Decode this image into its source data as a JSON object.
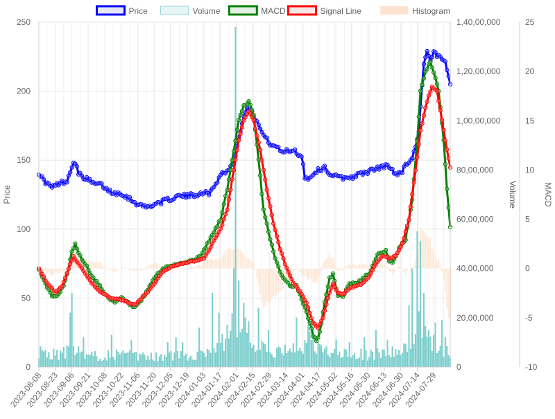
{
  "chart_data": {
    "type": "line",
    "legend": {
      "position": "top",
      "items": [
        {
          "label": "Price",
          "stroke": "#0000ff",
          "fill": "#e6e6f7"
        },
        {
          "label": "Volume",
          "stroke": "#9ad6d6",
          "fill": "#e6f6f6"
        },
        {
          "label": "MACD",
          "stroke": "#008000",
          "fill": "#e6efe6"
        },
        {
          "label": "Signal Line",
          "stroke": "#ff0000",
          "fill": "#f7e6e6"
        },
        {
          "label": "Histogram",
          "stroke": "#fde3cf",
          "fill": "#fde3cf"
        }
      ]
    },
    "axes": {
      "y_price": {
        "label": "Price",
        "min": 0,
        "max": 250,
        "ticks": [
          0,
          50,
          100,
          150,
          200,
          250
        ],
        "tick_labels": [
          "0",
          "50",
          "100",
          "150",
          "200",
          "250"
        ]
      },
      "y_volume": {
        "label": "Volume",
        "min": 0,
        "max": 140000000,
        "ticks": [
          0,
          20000000,
          40000000,
          60000000,
          80000000,
          100000000,
          120000000,
          140000000
        ],
        "tick_labels": [
          "0",
          "20,00,000",
          "40,00,000",
          "60,00,000",
          "80,00,000",
          "1,00,00,000",
          "1,20,00,000",
          "1,40,00,000"
        ]
      },
      "y_macd": {
        "label": "MACD",
        "min": -10,
        "max": 25,
        "ticks": [
          -10,
          -5,
          0,
          5,
          10,
          15,
          20,
          25
        ],
        "tick_labels": [
          "-10",
          "-5",
          "0",
          "5",
          "10",
          "15",
          "20",
          "25"
        ]
      },
      "x": {
        "tick_labels": [
          "2023-08-08",
          "2023-08-23",
          "2023-09-06",
          "2023-09-21",
          "2023-10-08",
          "2023-10-22",
          "2023-11-06",
          "2023-11-20",
          "2023-12-05",
          "2023-12-19",
          "2024-01-03",
          "2024-01-17",
          "2024-02-01",
          "2024-02-15",
          "2024-02-29",
          "2024-03-14",
          "2024-04-01",
          "2024-04-17",
          "2024-05-02",
          "2024-05-16",
          "2024-05-30",
          "2024-06-13",
          "2024-06-30",
          "2024-07-14",
          "2024-07-29"
        ]
      }
    },
    "n_points": 250,
    "series": {
      "price_keypoints": [
        [
          0,
          141
        ],
        [
          3,
          135
        ],
        [
          8,
          130
        ],
        [
          12,
          133
        ],
        [
          17,
          135
        ],
        [
          20,
          146
        ],
        [
          22,
          149
        ],
        [
          24,
          140
        ],
        [
          28,
          137
        ],
        [
          33,
          133
        ],
        [
          38,
          132
        ],
        [
          42,
          128
        ],
        [
          46,
          126
        ],
        [
          50,
          126
        ],
        [
          55,
          122
        ],
        [
          60,
          118
        ],
        [
          65,
          116
        ],
        [
          70,
          118
        ],
        [
          75,
          120
        ],
        [
          80,
          122
        ],
        [
          85,
          124
        ],
        [
          90,
          124
        ],
        [
          95,
          125
        ],
        [
          100,
          127
        ],
        [
          102,
          125
        ],
        [
          106,
          130
        ],
        [
          110,
          140
        ],
        [
          114,
          142
        ],
        [
          118,
          148
        ],
        [
          120,
          160
        ],
        [
          123,
          178
        ],
        [
          125,
          186
        ],
        [
          128,
          188
        ],
        [
          132,
          178
        ],
        [
          135,
          170
        ],
        [
          139,
          163
        ],
        [
          143,
          160
        ],
        [
          147,
          156
        ],
        [
          151,
          157
        ],
        [
          155,
          157
        ],
        [
          159,
          152
        ],
        [
          160,
          148
        ],
        [
          161,
          138
        ],
        [
          163,
          136
        ],
        [
          166,
          140
        ],
        [
          168,
          142
        ],
        [
          170,
          143
        ],
        [
          173,
          145
        ],
        [
          176,
          140
        ],
        [
          180,
          138
        ],
        [
          185,
          137
        ],
        [
          190,
          138
        ],
        [
          195,
          140
        ],
        [
          200,
          142
        ],
        [
          205,
          144
        ],
        [
          210,
          146
        ],
        [
          213,
          144
        ],
        [
          216,
          140
        ],
        [
          220,
          142
        ],
        [
          223,
          148
        ],
        [
          226,
          152
        ],
        [
          228,
          160
        ],
        [
          230,
          170
        ],
        [
          231,
          190
        ],
        [
          233,
          220
        ],
        [
          235,
          228
        ],
        [
          237,
          222
        ],
        [
          239,
          228
        ],
        [
          241,
          225
        ],
        [
          244,
          224
        ],
        [
          246,
          220
        ],
        [
          248,
          210
        ],
        [
          249,
          205
        ]
      ],
      "macd_keypoints": [
        [
          0,
          0
        ],
        [
          4,
          -1.5
        ],
        [
          8,
          -2.8
        ],
        [
          12,
          -2.6
        ],
        [
          15,
          -1.8
        ],
        [
          18,
          0
        ],
        [
          20,
          1.8
        ],
        [
          22,
          2.5
        ],
        [
          24,
          1.5
        ],
        [
          28,
          0.5
        ],
        [
          33,
          -1
        ],
        [
          38,
          -2
        ],
        [
          42,
          -3
        ],
        [
          46,
          -3.5
        ],
        [
          50,
          -3
        ],
        [
          54,
          -3.5
        ],
        [
          58,
          -4
        ],
        [
          60,
          -3.7
        ],
        [
          64,
          -2.8
        ],
        [
          68,
          -1.5
        ],
        [
          72,
          -0.5
        ],
        [
          76,
          0
        ],
        [
          80,
          0.3
        ],
        [
          86,
          0.5
        ],
        [
          90,
          0.7
        ],
        [
          95,
          1
        ],
        [
          98,
          1.2
        ],
        [
          102,
          2.5
        ],
        [
          106,
          3.7
        ],
        [
          110,
          5
        ],
        [
          114,
          8
        ],
        [
          118,
          12
        ],
        [
          121,
          15
        ],
        [
          124,
          16.5
        ],
        [
          127,
          17
        ],
        [
          130,
          15.5
        ],
        [
          133,
          11
        ],
        [
          136,
          6
        ],
        [
          140,
          3
        ],
        [
          144,
          0.5
        ],
        [
          148,
          -1
        ],
        [
          152,
          -1.7
        ],
        [
          156,
          -1.8
        ],
        [
          160,
          -3.5
        ],
        [
          163,
          -5
        ],
        [
          166,
          -6.8
        ],
        [
          168,
          -7.3
        ],
        [
          170,
          -6.5
        ],
        [
          173,
          -3.5
        ],
        [
          176,
          -1
        ],
        [
          178,
          -0.6
        ],
        [
          181,
          -2.8
        ],
        [
          184,
          -2.8
        ],
        [
          188,
          -1.5
        ],
        [
          192,
          -1.5
        ],
        [
          196,
          -1
        ],
        [
          200,
          -0.5
        ],
        [
          205,
          1.5
        ],
        [
          210,
          1.8
        ],
        [
          212,
          0.8
        ],
        [
          214,
          0.5
        ],
        [
          218,
          2
        ],
        [
          222,
          3
        ],
        [
          226,
          7
        ],
        [
          229,
          13
        ],
        [
          231,
          18
        ],
        [
          234,
          20
        ],
        [
          237,
          21
        ],
        [
          239,
          20
        ],
        [
          242,
          18
        ],
        [
          245,
          13
        ],
        [
          247,
          8
        ],
        [
          249,
          4.3
        ]
      ],
      "signal_keypoints": [
        [
          0,
          0
        ],
        [
          5,
          -1.5
        ],
        [
          10,
          -2.4
        ],
        [
          14,
          -1.8
        ],
        [
          18,
          0
        ],
        [
          21,
          1.2
        ],
        [
          24,
          0.5
        ],
        [
          28,
          -0.5
        ],
        [
          32,
          -1.5
        ],
        [
          38,
          -2.5
        ],
        [
          44,
          -3
        ],
        [
          50,
          -3.2
        ],
        [
          55,
          -3.5
        ],
        [
          58,
          -3.7
        ],
        [
          62,
          -3
        ],
        [
          66,
          -2.4
        ],
        [
          70,
          -1.5
        ],
        [
          74,
          -0.5
        ],
        [
          80,
          0.2
        ],
        [
          86,
          0.5
        ],
        [
          90,
          0.6
        ],
        [
          95,
          0.8
        ],
        [
          100,
          1
        ],
        [
          105,
          2.5
        ],
        [
          110,
          4
        ],
        [
          114,
          6
        ],
        [
          117,
          9
        ],
        [
          121,
          13
        ],
        [
          124,
          15
        ],
        [
          127,
          16
        ],
        [
          130,
          15
        ],
        [
          134,
          12
        ],
        [
          138,
          8
        ],
        [
          142,
          4.5
        ],
        [
          146,
          2
        ],
        [
          150,
          0
        ],
        [
          154,
          -1.5
        ],
        [
          158,
          -2.3
        ],
        [
          162,
          -3.5
        ],
        [
          166,
          -5.5
        ],
        [
          169,
          -6
        ],
        [
          172,
          -5
        ],
        [
          175,
          -3
        ],
        [
          178,
          -1.5
        ],
        [
          181,
          -2.5
        ],
        [
          184,
          -2.6
        ],
        [
          188,
          -2
        ],
        [
          192,
          -1.8
        ],
        [
          196,
          -1.5
        ],
        [
          200,
          -0.8
        ],
        [
          204,
          0.5
        ],
        [
          208,
          1.3
        ],
        [
          212,
          1
        ],
        [
          216,
          1.3
        ],
        [
          220,
          2.5
        ],
        [
          224,
          5
        ],
        [
          228,
          10
        ],
        [
          231,
          14
        ],
        [
          235,
          17
        ],
        [
          238,
          18.5
        ],
        [
          241,
          18
        ],
        [
          244,
          15
        ],
        [
          246,
          13
        ],
        [
          249,
          10.3
        ]
      ],
      "volume_keypoints": [
        [
          0,
          6000000
        ],
        [
          10,
          5000000
        ],
        [
          20,
          7000000
        ],
        [
          30,
          4000000
        ],
        [
          40,
          5000000
        ],
        [
          50,
          5000000
        ],
        [
          60,
          4000000
        ],
        [
          70,
          4000000
        ],
        [
          80,
          4500000
        ],
        [
          90,
          4500000
        ],
        [
          100,
          6000000
        ],
        [
          110,
          9000000
        ],
        [
          118,
          16000000
        ],
        [
          122,
          20000000
        ],
        [
          126,
          14000000
        ],
        [
          130,
          9000000
        ],
        [
          140,
          6000000
        ],
        [
          150,
          5000000
        ],
        [
          160,
          9000000
        ],
        [
          165,
          11000000
        ],
        [
          170,
          7000000
        ],
        [
          180,
          5000000
        ],
        [
          190,
          5000000
        ],
        [
          200,
          5000000
        ],
        [
          210,
          6000000
        ],
        [
          220,
          6000000
        ],
        [
          225,
          10000000
        ],
        [
          229,
          16000000
        ],
        [
          232,
          15000000
        ],
        [
          236,
          11000000
        ],
        [
          240,
          8000000
        ],
        [
          249,
          6000000
        ]
      ],
      "volume_spikes": [
        [
          19,
          22000000
        ],
        [
          20,
          30000000
        ],
        [
          27,
          12000000
        ],
        [
          44,
          13000000
        ],
        [
          56,
          11000000
        ],
        [
          78,
          10000000
        ],
        [
          83,
          12000000
        ],
        [
          87,
          10000000
        ],
        [
          97,
          16000000
        ],
        [
          105,
          30000000
        ],
        [
          109,
          22000000
        ],
        [
          118,
          40000000
        ],
        [
          119,
          138000000
        ],
        [
          121,
          35000000
        ],
        [
          124,
          26000000
        ],
        [
          133,
          24000000
        ],
        [
          139,
          15000000
        ],
        [
          149,
          9000000
        ],
        [
          156,
          20000000
        ],
        [
          163,
          17000000
        ],
        [
          166,
          18000000
        ],
        [
          180,
          11000000
        ],
        [
          188,
          10000000
        ],
        [
          197,
          12000000
        ],
        [
          204,
          15000000
        ],
        [
          211,
          11000000
        ],
        [
          224,
          25000000
        ],
        [
          226,
          40000000
        ],
        [
          229,
          55000000
        ],
        [
          231,
          51000000
        ],
        [
          233,
          30000000
        ],
        [
          236,
          15000000
        ],
        [
          240,
          18000000
        ],
        [
          244,
          19000000
        ],
        [
          246,
          12000000
        ]
      ]
    }
  }
}
